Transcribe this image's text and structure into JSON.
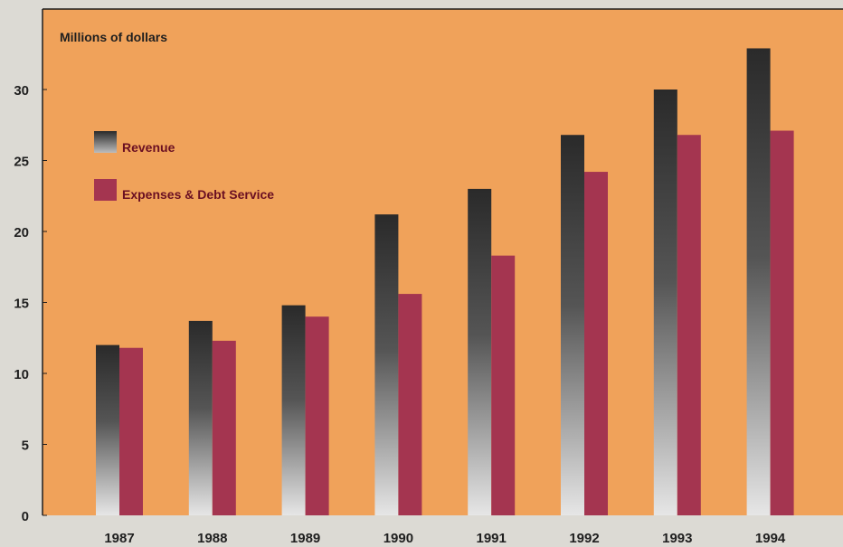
{
  "chart_data": {
    "type": "bar",
    "title": "",
    "xlabel": "",
    "ylabel": "Millions of dollars",
    "categories": [
      "1987",
      "1988",
      "1989",
      "1990",
      "1991",
      "1992",
      "1993",
      "1994"
    ],
    "series": [
      {
        "name": "Revenue",
        "values": [
          12.0,
          13.7,
          14.8,
          21.2,
          23.0,
          26.8,
          30.0,
          32.9
        ]
      },
      {
        "name": "Expenses & Debt Service",
        "values": [
          11.8,
          12.3,
          14.0,
          15.6,
          18.3,
          24.2,
          26.8,
          27.1
        ]
      }
    ],
    "ylim": [
      0,
      35
    ],
    "yticks": [
      "0",
      "5",
      "10",
      "15",
      "20",
      "25",
      "30"
    ],
    "grid": false,
    "legend_position": "top-left",
    "colors": {
      "plot_background": "#f0a25a",
      "page_background": "#dcdad4",
      "revenue_top": "#2a2a2a",
      "revenue_bottom": "#e6e6e6",
      "expenses": "#a43550"
    }
  }
}
